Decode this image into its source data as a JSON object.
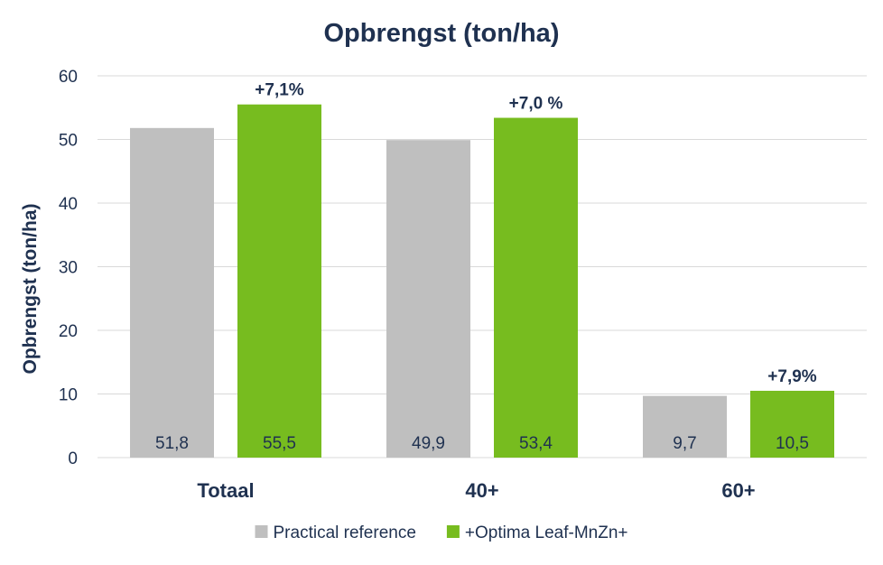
{
  "chart_data": {
    "type": "bar",
    "title": "Opbrengst (ton/ha)",
    "xlabel": "",
    "ylabel": "Opbrengst (ton/ha)",
    "ylim": [
      0,
      60
    ],
    "yticks": [
      0,
      10,
      20,
      30,
      40,
      50,
      60
    ],
    "grid": true,
    "legend_position": "bottom",
    "categories": [
      "Totaal",
      "40+",
      "60+"
    ],
    "series": [
      {
        "name": "Practical reference",
        "color": "#bfbfbf",
        "values": [
          51.8,
          49.9,
          9.7
        ],
        "value_labels": [
          "51,8",
          "49,9",
          "9,7"
        ]
      },
      {
        "name": "+Optima Leaf-MnZn+",
        "color": "#77bc1f",
        "values": [
          55.5,
          53.4,
          10.5
        ],
        "value_labels": [
          "55,5",
          "53,4",
          "10,5"
        ]
      }
    ],
    "annotations": [
      "+7,1%",
      "+7,0 %",
      "+7,9%"
    ],
    "colors": {
      "text": "#1f3150",
      "grid": "#d9d9d9"
    }
  }
}
